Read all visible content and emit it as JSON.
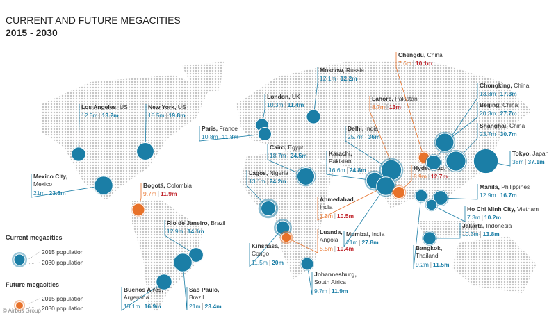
{
  "header": {
    "title": "CURRENT AND FUTURE MEGACITIES",
    "subtitle": "2015 - 2030"
  },
  "legend": {
    "current": {
      "title": "Current megacities",
      "pop_2015": "2015 population",
      "pop_2030": "2030 population",
      "color": "#1b7ea6"
    },
    "future": {
      "title": "Future megacities",
      "pop_2015": "2015 population",
      "pop_2030": "2030 population",
      "color": "#e8722a"
    }
  },
  "cities": [
    {
      "name": "Los Angeles,",
      "country": "US",
      "pop_2015": 12.3,
      "pop_2015_label": "12.3m",
      "pop_2030": 13.2,
      "pop_2030_label": "13.2m",
      "future": false
    },
    {
      "name": "New York,",
      "country": "US",
      "pop_2015": 18.5,
      "pop_2015_label": "18.5m",
      "pop_2030": 19.8,
      "pop_2030_label": "19.8m",
      "future": false
    },
    {
      "name": "Mexico City,",
      "country": "Mexico",
      "pop_2015": 21,
      "pop_2015_label": "21m",
      "pop_2030": 23.8,
      "pop_2030_label": "23.8m",
      "future": false
    },
    {
      "name": "Bogotá,",
      "country": "Colombia",
      "pop_2015": 9.7,
      "pop_2015_label": "9.7m",
      "pop_2030": 11.9,
      "pop_2030_label": "11.9m",
      "future": true
    },
    {
      "name": "Rio de Janeiro,",
      "country": "Brazil",
      "pop_2015": 12.9,
      "pop_2015_label": "12.9m",
      "pop_2030": 14.1,
      "pop_2030_label": "14.1m",
      "future": false
    },
    {
      "name": "Sao Paulo,",
      "country": "Brazil",
      "pop_2015": 21,
      "pop_2015_label": "21m",
      "pop_2030": 23.4,
      "pop_2030_label": "23.4m",
      "future": false
    },
    {
      "name": "Buenos Aires,",
      "country": "Argentina",
      "pop_2015": 15.1,
      "pop_2015_label": "15.1m",
      "pop_2030": 16.9,
      "pop_2030_label": "16.9m",
      "future": false
    },
    {
      "name": "London,",
      "country": "UK",
      "pop_2015": 10.3,
      "pop_2015_label": "10.3m",
      "pop_2030": 11.4,
      "pop_2030_label": "11.4m",
      "future": false
    },
    {
      "name": "Paris,",
      "country": "France",
      "pop_2015": 10.8,
      "pop_2015_label": "10.8m",
      "pop_2030": 11.8,
      "pop_2030_label": "11.8m",
      "future": false
    },
    {
      "name": "Moscow,",
      "country": "Russia",
      "pop_2015": 12.1,
      "pop_2015_label": "12.1m",
      "pop_2030": 12.2,
      "pop_2030_label": "12.2m",
      "future": false
    },
    {
      "name": "Cairo,",
      "country": "Egypt",
      "pop_2015": 18.7,
      "pop_2015_label": "18.7m",
      "pop_2030": 24.5,
      "pop_2030_label": "24.5m",
      "future": false
    },
    {
      "name": "Lagos,",
      "country": "Nigeria",
      "pop_2015": 13.1,
      "pop_2015_label": "13.1m",
      "pop_2030": 24.2,
      "pop_2030_label": "24.2m",
      "future": false
    },
    {
      "name": "Kinshasa,",
      "country": "Congo",
      "pop_2015": 11.5,
      "pop_2015_label": "11.5m",
      "pop_2030": 20,
      "pop_2030_label": "20m",
      "future": false
    },
    {
      "name": "Luanda,",
      "country": "Angola",
      "pop_2015": 5.5,
      "pop_2015_label": "5.5m",
      "pop_2030": 10.4,
      "pop_2030_label": "10.4m",
      "future": true
    },
    {
      "name": "Johannesburg,",
      "country": "South Africa",
      "pop_2015": 9.7,
      "pop_2015_label": "9.7m",
      "pop_2030": 11.9,
      "pop_2030_label": "11.9m",
      "future": false
    },
    {
      "name": "Karachi,",
      "country": "Pakistan",
      "pop_2015": 16.6,
      "pop_2015_label": "16.6m",
      "pop_2030": 24.8,
      "pop_2030_label": "24.8m",
      "future": false
    },
    {
      "name": "Lahore,",
      "country": "Pakistan",
      "pop_2015": 8.7,
      "pop_2015_label": "8.7m",
      "pop_2030": 13,
      "pop_2030_label": "13m",
      "future": true
    },
    {
      "name": "Delhi,",
      "country": "India",
      "pop_2015": 25.7,
      "pop_2015_label": "25.7m",
      "pop_2030": 36,
      "pop_2030_label": "36m",
      "future": false
    },
    {
      "name": "Ahmedabad,",
      "country": "India",
      "pop_2015": 7.3,
      "pop_2015_label": "7.3m",
      "pop_2030": 10.5,
      "pop_2030_label": "10.5m",
      "future": true
    },
    {
      "name": "Mumbai,",
      "country": "India",
      "pop_2015": 21,
      "pop_2015_label": "21m",
      "pop_2030": 27.8,
      "pop_2030_label": "27.8m",
      "future": false
    },
    {
      "name": "Hyderabad,",
      "country": "India",
      "pop_2015": 8.9,
      "pop_2015_label": "8.9m",
      "pop_2030": 12.7,
      "pop_2030_label": "12.7m",
      "future": true
    },
    {
      "name": "Chengdu,",
      "country": "China",
      "pop_2015": 7.6,
      "pop_2015_label": "7.6m",
      "pop_2030": 10.1,
      "pop_2030_label": "10.1m",
      "future": true
    },
    {
      "name": "Chongking,",
      "country": "China",
      "pop_2015": 13.3,
      "pop_2015_label": "13.3m",
      "pop_2030": 17.3,
      "pop_2030_label": "17.3m",
      "future": false
    },
    {
      "name": "Beijing,",
      "country": "China",
      "pop_2015": 20.3,
      "pop_2015_label": "20.3m",
      "pop_2030": 27.7,
      "pop_2030_label": "27.7m",
      "future": false
    },
    {
      "name": "Shanghai,",
      "country": "China",
      "pop_2015": 23.7,
      "pop_2015_label": "23.7m",
      "pop_2030": 30.7,
      "pop_2030_label": "30.7m",
      "future": false
    },
    {
      "name": "Tokyo,",
      "country": "Japan",
      "pop_2015": 38,
      "pop_2015_label": "38m",
      "pop_2030": 37.1,
      "pop_2030_label": "37.1m",
      "future": false
    },
    {
      "name": "Manila,",
      "country": "Philippines",
      "pop_2015": 12.9,
      "pop_2015_label": "12.9m",
      "pop_2030": 16.7,
      "pop_2030_label": "16.7m",
      "future": false
    },
    {
      "name": "Ho Chi Minh City,",
      "country": "Vietnam",
      "pop_2015": 7.3,
      "pop_2015_label": "7.3m",
      "pop_2030": 10.2,
      "pop_2030_label": "10.2m",
      "future": false
    },
    {
      "name": "Jakarta,",
      "country": "Indonesia",
      "pop_2015": 10.3,
      "pop_2015_label": "10.3m",
      "pop_2030": 13.8,
      "pop_2030_label": "13.8m",
      "future": false
    },
    {
      "name": "Bangkok,",
      "country": "Thailand",
      "pop_2015": 9.2,
      "pop_2015_label": "9.2m",
      "pop_2030": 11.5,
      "pop_2030_label": "11.5m",
      "future": false
    }
  ],
  "credit": "© Airbus Group"
}
